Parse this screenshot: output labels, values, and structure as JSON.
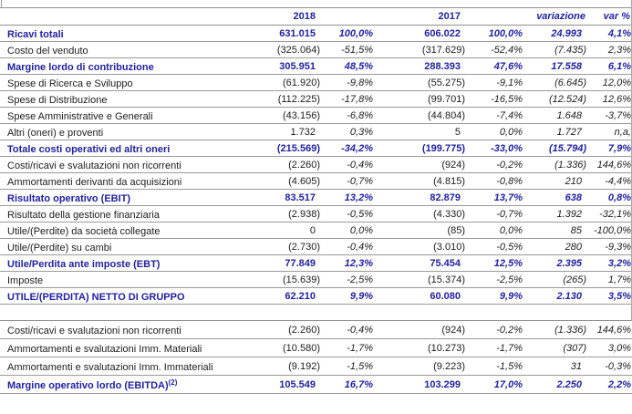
{
  "colors": {
    "accent_navy": "#22229e",
    "text_black": "#1c1c1c",
    "gridline": "#9a9a9a",
    "background": "#ffffff"
  },
  "header": {
    "col_2018": "2018",
    "col_2017": "2017",
    "col_variazione": "variazione",
    "col_var_pct": "var %"
  },
  "sections": [
    {
      "rows": [
        {
          "label": "Ricavi totali",
          "v2018": "631.015",
          "p2018": "100,0%",
          "v2017": "606.022",
          "p2017": "100,0%",
          "var": "24.993",
          "varp": "4,1%",
          "emphasis": true
        },
        {
          "label": "Costo del venduto",
          "v2018": "(325.064)",
          "p2018": "-51,5%",
          "v2017": "(317.629)",
          "p2017": "-52,4%",
          "var": "(7.435)",
          "varp": "2,3%",
          "emphasis": false
        },
        {
          "label": "Margine lordo di contribuzione",
          "v2018": "305.951",
          "p2018": "48,5%",
          "v2017": "288.393",
          "p2017": "47,6%",
          "var": "17.558",
          "varp": "6,1%",
          "emphasis": true
        },
        {
          "label": "Spese di Ricerca e Sviluppo",
          "v2018": "(61.920)",
          "p2018": "-9,8%",
          "v2017": "(55.275)",
          "p2017": "-9,1%",
          "var": "(6.645)",
          "varp": "12,0%",
          "emphasis": false
        },
        {
          "label": "Spese di Distribuzione",
          "v2018": "(112.225)",
          "p2018": "-17,8%",
          "v2017": "(99.701)",
          "p2017": "-16,5%",
          "var": "(12.524)",
          "varp": "12,6%",
          "emphasis": false
        },
        {
          "label": "Spese Amministrative e Generali",
          "v2018": "(43.156)",
          "p2018": "-6,8%",
          "v2017": "(44.804)",
          "p2017": "-7,4%",
          "var": "1.648",
          "varp": "-3,7%",
          "emphasis": false
        },
        {
          "label": "Altri (oneri) e proventi",
          "v2018": "1.732",
          "p2018": "0,3%",
          "v2017": "5",
          "p2017": "0,0%",
          "var": "1.727",
          "varp": "n,a,",
          "emphasis": false
        },
        {
          "label": "Totale costi operativi ed altri oneri",
          "v2018": "(215.569)",
          "p2018": "-34,2%",
          "v2017": "(199.775)",
          "p2017": "-33,0%",
          "var": "(15.794)",
          "varp": "7,9%",
          "emphasis": true
        },
        {
          "label": "Costi/ricavi e svalutazioni non ricorrenti",
          "v2018": "(2.260)",
          "p2018": "-0,4%",
          "v2017": "(924)",
          "p2017": "-0,2%",
          "var": "(1.336)",
          "varp": "144,6%",
          "emphasis": false
        },
        {
          "label": "Ammortamenti derivanti da acquisizioni",
          "v2018": "(4.605)",
          "p2018": "-0,7%",
          "v2017": "(4.815)",
          "p2017": "-0,8%",
          "var": "210",
          "varp": "-4,4%",
          "emphasis": false
        },
        {
          "label": "Risultato operativo (EBIT)",
          "v2018": "83.517",
          "p2018": "13,2%",
          "v2017": "82.879",
          "p2017": "13,7%",
          "var": "638",
          "varp": "0,8%",
          "emphasis": true
        },
        {
          "label": "Risultato della gestione finanziaria",
          "v2018": "(2.938)",
          "p2018": "-0,5%",
          "v2017": "(4.330)",
          "p2017": "-0,7%",
          "var": "1.392",
          "varp": "-32,1%",
          "emphasis": false
        },
        {
          "label": "Utile/(Perdite) da società collegate",
          "v2018": "0",
          "p2018": "0,0%",
          "v2017": "(85)",
          "p2017": "0,0%",
          "var": "85",
          "varp": "-100,0%",
          "emphasis": false
        },
        {
          "label": "Utile/(Perdite) su cambi",
          "v2018": "(2.730)",
          "p2018": "-0,4%",
          "v2017": "(3.010)",
          "p2017": "-0,5%",
          "var": "280",
          "varp": "-9,3%",
          "emphasis": false
        },
        {
          "label": "Utile/Perdita ante imposte (EBT)",
          "v2018": "77.849",
          "p2018": "12,3%",
          "v2017": "75.454",
          "p2017": "12,5%",
          "var": "2.395",
          "varp": "3,2%",
          "emphasis": true
        },
        {
          "label": "Imposte",
          "v2018": "(15.639)",
          "p2018": "-2,5%",
          "v2017": "(15.374)",
          "p2017": "-2,5%",
          "var": "(265)",
          "varp": "1,7%",
          "emphasis": false
        },
        {
          "label": "UTILE/(PERDITA) NETTO DI GRUPPO",
          "v2018": "62.210",
          "p2018": "9,9%",
          "v2017": "60.080",
          "p2017": "9,9%",
          "var": "2.130",
          "varp": "3,5%",
          "emphasis": true
        }
      ]
    },
    {
      "rows": [
        {
          "label": "Costi/ricavi e svalutazioni non ricorrenti",
          "v2018": "(2.260)",
          "p2018": "-0,4%",
          "v2017": "(924)",
          "p2017": "-0,2%",
          "var": "(1.336)",
          "varp": "144,6%",
          "emphasis": false
        },
        {
          "label": "Ammortamenti e svalutazioni Imm. Materiali",
          "v2018": "(10.580)",
          "p2018": "-1,7%",
          "v2017": "(10.273)",
          "p2017": "-1,7%",
          "var": "(307)",
          "varp": "3,0%",
          "emphasis": false
        },
        {
          "label": "Ammortamenti e svalutazioni Imm. Immateriali",
          "v2018": "(9.192)",
          "p2018": "-1,5%",
          "v2017": "(9.223)",
          "p2017": "-1,5%",
          "var": "31",
          "varp": "-0,3%",
          "emphasis": false
        },
        {
          "label": "Margine operativo lordo (EBITDA)",
          "sup": "(2)",
          "v2018": "105.549",
          "p2018": "16,7%",
          "v2017": "103.299",
          "p2017": "17,0%",
          "var": "2.250",
          "varp": "2,2%",
          "emphasis": true
        }
      ]
    }
  ]
}
